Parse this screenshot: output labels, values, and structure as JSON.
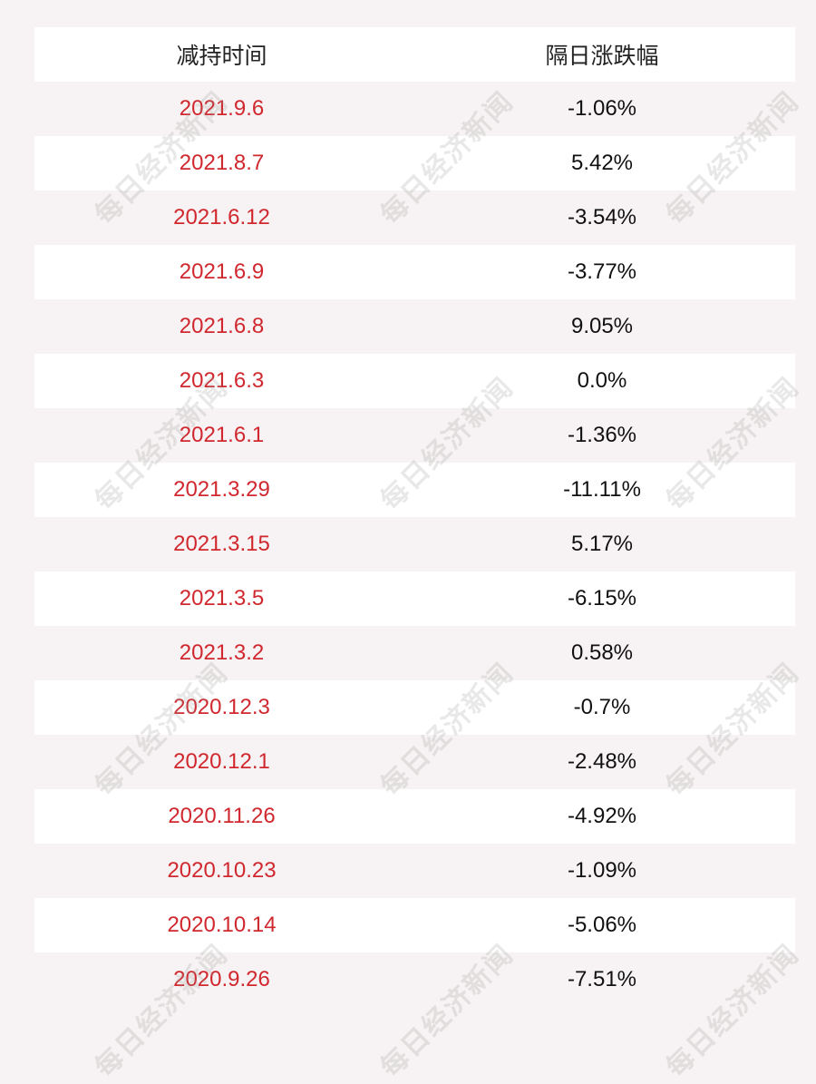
{
  "table": {
    "headers": [
      "减持时间",
      "隔日涨跌幅"
    ],
    "rows": [
      {
        "date": "2021.9.6",
        "change": "-1.06%"
      },
      {
        "date": "2021.8.7",
        "change": "5.42%"
      },
      {
        "date": "2021.6.12",
        "change": "-3.54%"
      },
      {
        "date": "2021.6.9",
        "change": "-3.77%"
      },
      {
        "date": "2021.6.8",
        "change": "9.05%"
      },
      {
        "date": "2021.6.3",
        "change": "0.0%"
      },
      {
        "date": "2021.6.1",
        "change": "-1.36%"
      },
      {
        "date": "2021.3.29",
        "change": "-11.11%"
      },
      {
        "date": "2021.3.15",
        "change": "5.17%"
      },
      {
        "date": "2021.3.5",
        "change": "-6.15%"
      },
      {
        "date": "2021.3.2",
        "change": "0.58%"
      },
      {
        "date": "2020.12.3",
        "change": "-0.7%"
      },
      {
        "date": "2020.12.1",
        "change": "-2.48%"
      },
      {
        "date": "2020.11.26",
        "change": "-4.92%"
      },
      {
        "date": "2020.10.23",
        "change": "-1.09%"
      },
      {
        "date": "2020.10.14",
        "change": "-5.06%"
      },
      {
        "date": "2020.9.26",
        "change": "-7.51%"
      }
    ]
  },
  "watermark": {
    "text": "每日经济新闻"
  },
  "colors": {
    "background": "#f7f2f3",
    "row_white": "#ffffff",
    "date_text": "#d0282e",
    "change_text": "#111111"
  }
}
